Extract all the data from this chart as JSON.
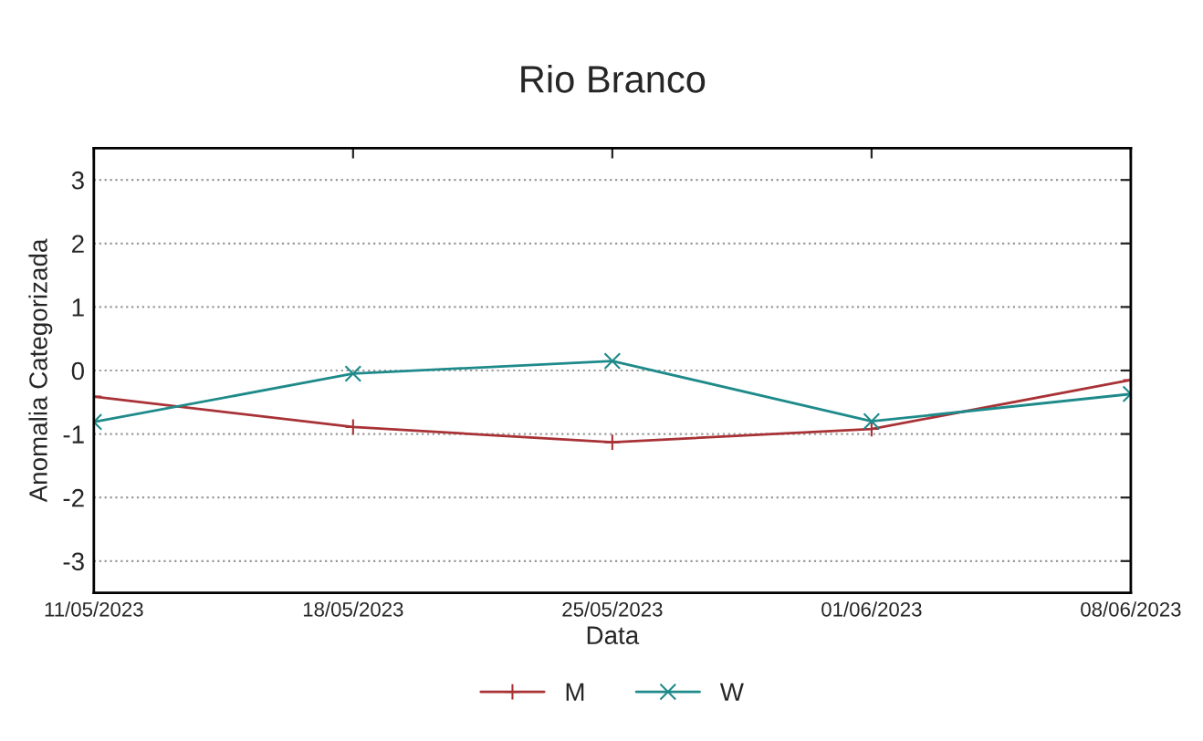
{
  "chart_data": {
    "type": "line",
    "title": "Rio Branco",
    "xlabel": "Data",
    "ylabel": "Anomalia Categorizada",
    "x": [
      "2023-05-11",
      "2023-05-18",
      "2023-05-25",
      "2023-06-01",
      "2023-06-08"
    ],
    "series": [
      {
        "name": "M",
        "color": "#a83236",
        "marker": "plus",
        "values": [
          -0.41,
          -0.89,
          -1.13,
          -0.92,
          -0.15
        ]
      },
      {
        "name": "W",
        "color": "#1f8a8a",
        "marker": "cross",
        "values": [
          -0.81,
          -0.05,
          0.15,
          -0.8,
          -0.37
        ]
      }
    ],
    "xlim": [
      "2023-05-11",
      "2023-06-08"
    ],
    "xticks": [
      {
        "value": "2023-05-11",
        "label": "11/05/2023"
      },
      {
        "value": "2023-05-18",
        "label": "18/05/2023"
      },
      {
        "value": "2023-05-25",
        "label": "25/05/2023"
      },
      {
        "value": "2023-06-01",
        "label": "01/06/2023"
      },
      {
        "value": "2023-06-08",
        "label": "08/06/2023"
      }
    ],
    "ylim": [
      -3.5,
      3.5
    ],
    "yticks": [
      -3,
      -2,
      -1,
      0,
      1,
      2,
      3
    ],
    "grid": "y",
    "legend": "bottom",
    "line_style": "solid"
  }
}
